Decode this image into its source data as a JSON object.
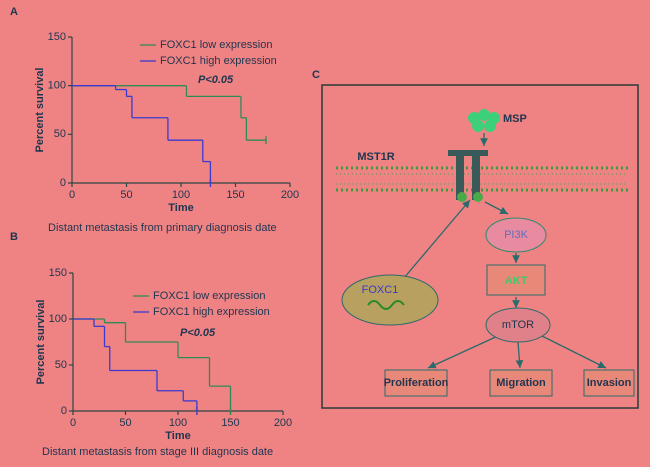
{
  "chart_data": [
    {
      "type": "line",
      "step": true,
      "label": "A",
      "title": "Distant metastasis from primary diagnosis date",
      "xlabel": "Time",
      "ylabel": "Percent survival",
      "annotation": "P<0.05",
      "xlim": [
        0,
        200
      ],
      "ylim": [
        0,
        150
      ],
      "xticks": [
        0,
        50,
        100,
        150,
        200
      ],
      "yticks": [
        0,
        50,
        100,
        150
      ],
      "series": [
        {
          "name": "FOXC1 low expression",
          "color": "#2e8b57",
          "x": [
            0,
            105,
            155,
            160,
            178
          ],
          "values": [
            100,
            89,
            67,
            44,
            44
          ]
        },
        {
          "name": "FOXC1 high expression",
          "color": "#3a3ad0",
          "x": [
            0,
            40,
            50,
            55,
            88,
            120,
            127
          ],
          "values": [
            100,
            96,
            89,
            67,
            44,
            22,
            0
          ]
        }
      ]
    },
    {
      "type": "line",
      "step": true,
      "label": "B",
      "title": "Distant metastasis from stage III diagnosis date",
      "xlabel": "Time",
      "ylabel": "Percent survival",
      "annotation": "P<0.05",
      "xlim": [
        0,
        200
      ],
      "ylim": [
        0,
        150
      ],
      "xticks": [
        0,
        50,
        100,
        150,
        200
      ],
      "yticks": [
        0,
        50,
        100,
        150
      ],
      "series": [
        {
          "name": "FOXC1 low expression",
          "color": "#2e8b57",
          "x": [
            0,
            30,
            50,
            100,
            130,
            150
          ],
          "values": [
            100,
            96,
            75,
            58,
            27,
            0
          ]
        },
        {
          "name": "FOXC1 high expression",
          "color": "#3a3ad0",
          "x": [
            0,
            20,
            30,
            35,
            80,
            105,
            118
          ],
          "values": [
            100,
            92,
            70,
            44,
            22,
            11,
            0
          ]
        }
      ]
    }
  ],
  "diagram": {
    "label": "C",
    "ligand": "MSP",
    "receptor": "MST1R",
    "gene": "FOXC1",
    "pathway": [
      "PI3K",
      "AKT",
      "mTOR"
    ],
    "outcomes": [
      "Proliferation",
      "Migration",
      "Invasion"
    ]
  }
}
